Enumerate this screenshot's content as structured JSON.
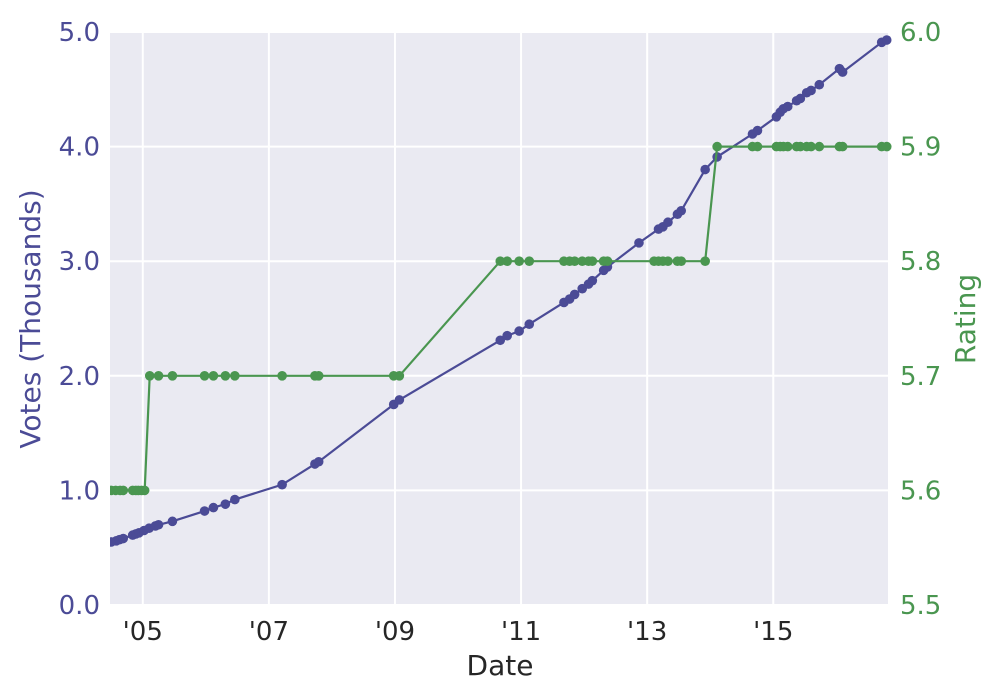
{
  "chart_data": {
    "type": "line",
    "xlabel": "Date",
    "ylabel_left": "Votes (Thousands)",
    "ylabel_right": "Rating",
    "xlim": [
      2004.48,
      2016.82
    ],
    "ylim_left": [
      0,
      5.0
    ],
    "ylim_right": [
      5.5,
      6.0
    ],
    "x_ticks": [
      {
        "value": 2005,
        "label": "'05"
      },
      {
        "value": 2007,
        "label": "'07"
      },
      {
        "value": 2009,
        "label": "'09"
      },
      {
        "value": 2011,
        "label": "'11"
      },
      {
        "value": 2013,
        "label": "'13"
      },
      {
        "value": 2015,
        "label": "'15"
      }
    ],
    "y_ticks_left": [
      "0.0",
      "1.0",
      "2.0",
      "3.0",
      "4.0",
      "5.0"
    ],
    "y_ticks_right": [
      "5.5",
      "5.6",
      "5.7",
      "5.8",
      "5.9",
      "6.0"
    ],
    "grid": true,
    "colors": {
      "votes": "#4b4b96",
      "rating": "#4a9650",
      "plot_bg": "#eaeaf2",
      "grid": "#ffffff"
    },
    "series": [
      {
        "axis": "left",
        "x": [
          2004.5,
          2004.58,
          2004.63,
          2004.69,
          2004.84,
          2004.89,
          2004.94,
          2005.02,
          2005.1,
          2005.2,
          2005.25,
          2005.47,
          2005.98,
          2006.12,
          2006.31,
          2006.46,
          2007.21,
          2007.73,
          2007.79,
          2008.98,
          2009.07,
          2010.67,
          2010.78,
          2010.97,
          2011.13,
          2011.68,
          2011.77,
          2011.85,
          2011.97,
          2012.07,
          2012.13,
          2012.31,
          2012.37,
          2012.87,
          2013.18,
          2013.25,
          2013.33,
          2013.48,
          2013.54,
          2013.92,
          2014.11,
          2014.67,
          2014.75,
          2015.05,
          2015.11,
          2015.16,
          2015.23,
          2015.37,
          2015.43,
          2015.53,
          2015.6,
          2015.73,
          2016.05,
          2016.1,
          2016.72,
          2016.8
        ],
        "y": [
          0.55,
          0.56,
          0.57,
          0.58,
          0.61,
          0.62,
          0.63,
          0.65,
          0.67,
          0.69,
          0.7,
          0.73,
          0.82,
          0.85,
          0.88,
          0.92,
          1.05,
          1.23,
          1.25,
          1.75,
          1.79,
          2.31,
          2.35,
          2.39,
          2.45,
          2.64,
          2.67,
          2.71,
          2.76,
          2.8,
          2.83,
          2.92,
          2.95,
          3.16,
          3.28,
          3.3,
          3.34,
          3.41,
          3.44,
          3.8,
          3.91,
          4.11,
          4.14,
          4.26,
          4.3,
          4.33,
          4.35,
          4.4,
          4.42,
          4.47,
          4.49,
          4.54,
          4.68,
          4.65,
          4.91,
          4.93
        ]
      },
      {
        "axis": "right",
        "x": [
          2004.5,
          2004.57,
          2004.64,
          2004.69,
          2004.84,
          2004.89,
          2004.93,
          2004.98,
          2005.03,
          2005.11,
          2005.25,
          2005.47,
          2005.98,
          2006.12,
          2006.31,
          2006.46,
          2007.21,
          2007.73,
          2007.79,
          2008.98,
          2009.07,
          2010.67,
          2010.78,
          2010.97,
          2011.13,
          2011.68,
          2011.77,
          2011.85,
          2011.97,
          2012.07,
          2012.13,
          2012.31,
          2012.37,
          2013.11,
          2013.18,
          2013.25,
          2013.33,
          2013.48,
          2013.54,
          2013.92,
          2014.11,
          2014.67,
          2014.75,
          2015.05,
          2015.11,
          2015.16,
          2015.23,
          2015.37,
          2015.43,
          2015.53,
          2015.6,
          2015.73,
          2016.05,
          2016.1,
          2016.72,
          2016.8
        ],
        "y": [
          5.6,
          5.6,
          5.6,
          5.6,
          5.6,
          5.6,
          5.6,
          5.6,
          5.6,
          5.7,
          5.7,
          5.7,
          5.7,
          5.7,
          5.7,
          5.7,
          5.7,
          5.7,
          5.7,
          5.7,
          5.7,
          5.8,
          5.8,
          5.8,
          5.8,
          5.8,
          5.8,
          5.8,
          5.8,
          5.8,
          5.8,
          5.8,
          5.8,
          5.8,
          5.8,
          5.8,
          5.8,
          5.8,
          5.8,
          5.8,
          5.9,
          5.9,
          5.9,
          5.9,
          5.9,
          5.9,
          5.9,
          5.9,
          5.9,
          5.9,
          5.9,
          5.9,
          5.9,
          5.9,
          5.9,
          5.9
        ]
      }
    ]
  }
}
